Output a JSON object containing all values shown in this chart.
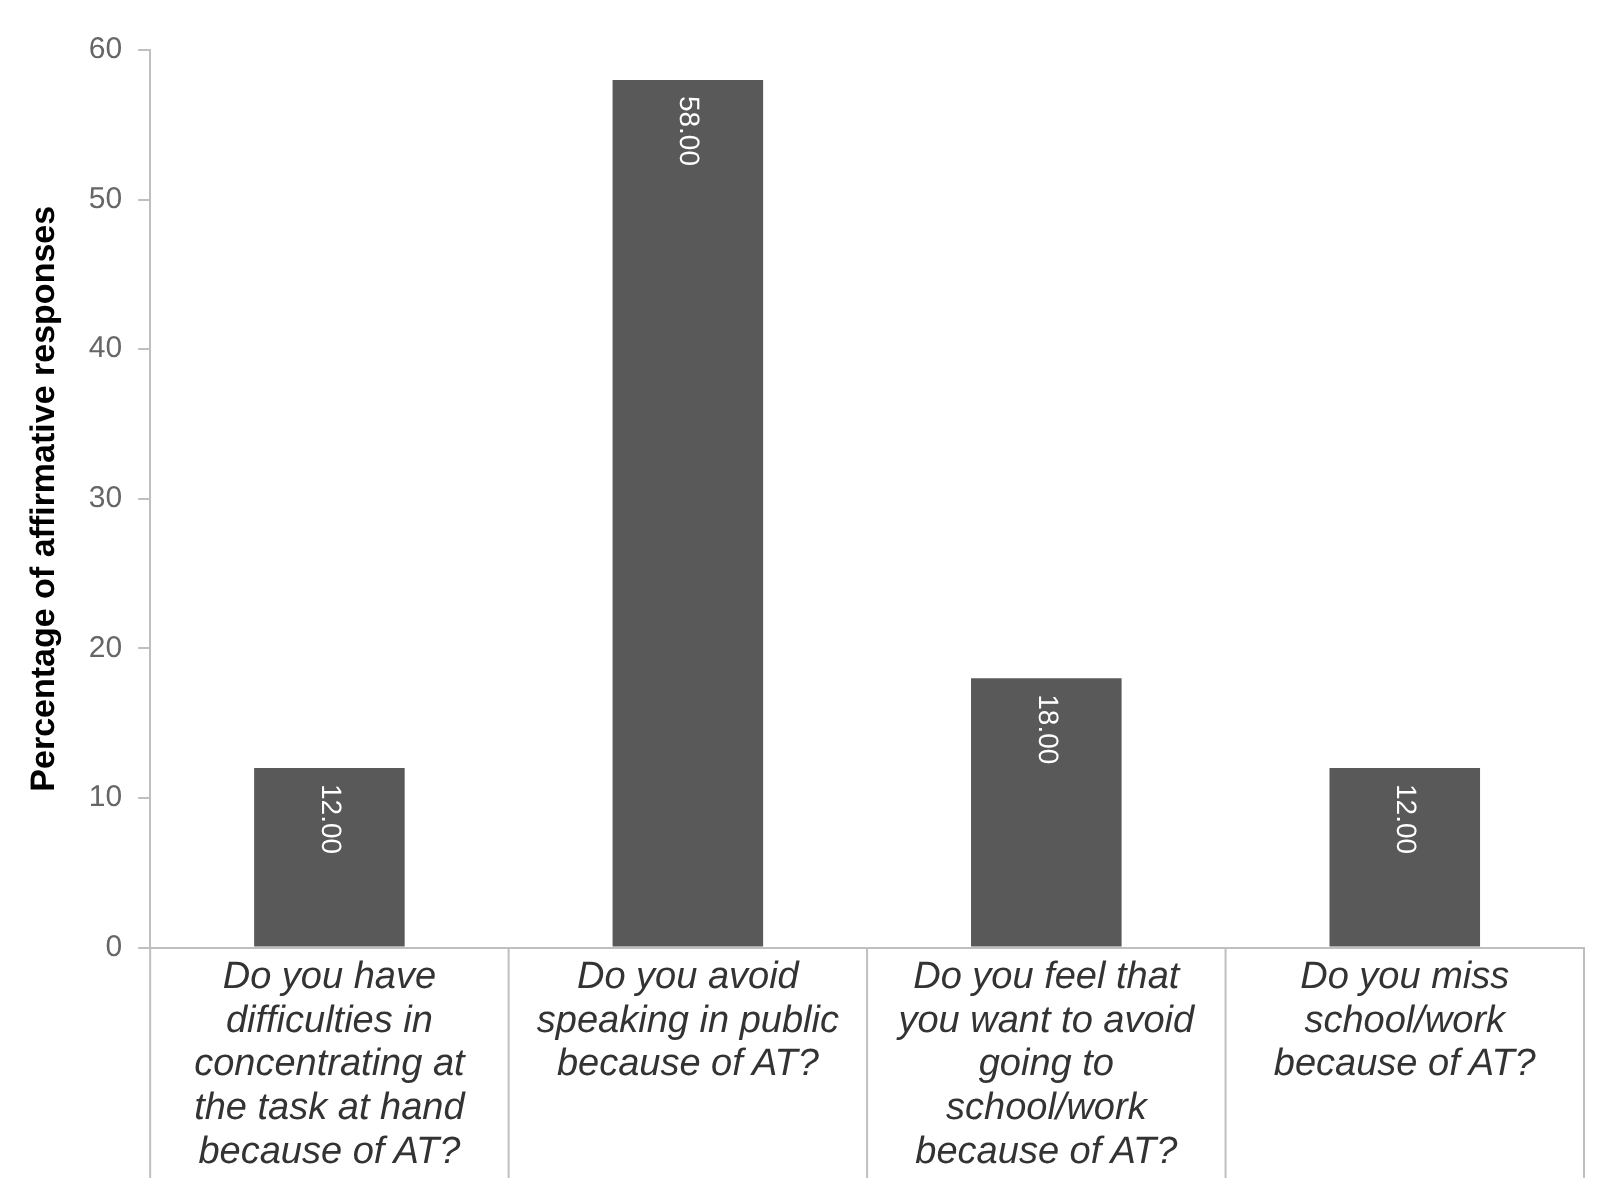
{
  "chart_data": {
    "type": "bar",
    "ylabel": "Percentage of affirmative responses",
    "categories": [
      "Do you have difficulties  in concentrating at the task at hand because of AT?",
      "Do you avoid speaking in public because of AT?",
      "Do you feel that you want to avoid going to school/work because of AT?",
      "Do you miss school/work because of AT?"
    ],
    "values": [
      12,
      58,
      18,
      12
    ],
    "value_labels": [
      "12.00",
      "58.00",
      "18.00",
      "12.00"
    ],
    "color": "#595959",
    "ylim": [
      0,
      60
    ],
    "yticks": [
      0,
      10,
      20,
      30,
      40,
      50,
      60
    ],
    "grid": false,
    "legend": false
  }
}
